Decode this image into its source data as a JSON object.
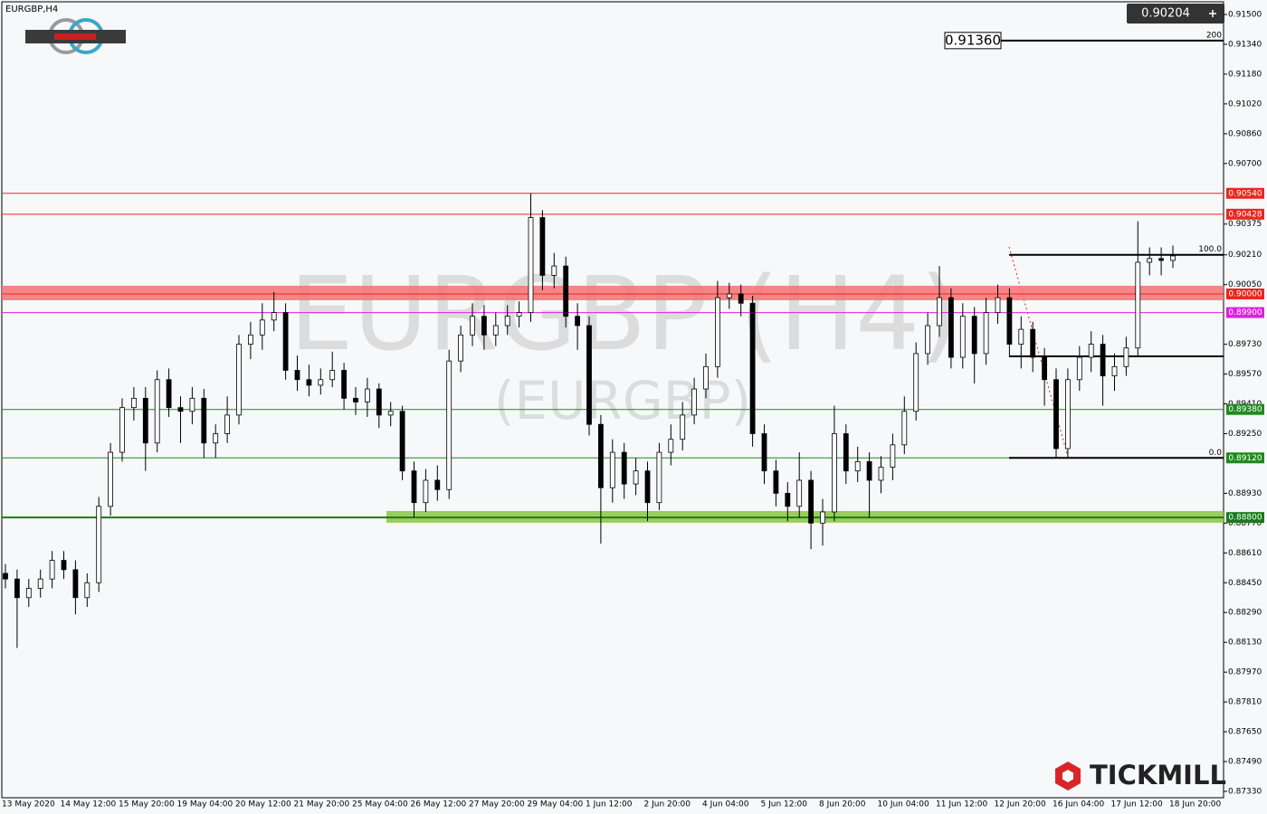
{
  "chart_data": {
    "type": "candlestick",
    "title": "EURGBP,H4",
    "watermark": "EURGBP (H4)",
    "watermark_sub": "(EURGBP)",
    "categories": [
      "13 May 2020",
      null,
      null,
      null,
      null,
      "14 May 12:00",
      null,
      null,
      null,
      null,
      "15 May 20:00",
      null,
      null,
      null,
      null,
      "19 May 04:00",
      null,
      null,
      null,
      null,
      "20 May 12:00",
      null,
      null,
      null,
      null,
      "21 May 20:00",
      null,
      null,
      null,
      null,
      "25 May 04:00",
      null,
      null,
      null,
      null,
      "26 May 12:00",
      null,
      null,
      null,
      null,
      "27 May 20:00",
      null,
      null,
      null,
      null,
      "29 May 04:00",
      null,
      null,
      null,
      null,
      "1 Jun 12:00",
      null,
      null,
      null,
      null,
      "2 Jun 20:00",
      null,
      null,
      null,
      null,
      "4 Jun 04:00",
      null,
      null,
      null,
      null,
      "5 Jun 12:00",
      null,
      null,
      null,
      null,
      "8 Jun 20:00",
      null,
      null,
      null,
      null,
      "10 Jun 04:00",
      null,
      null,
      null,
      null,
      "11 Jun 12:00",
      null,
      null,
      null,
      null,
      "12 Jun 20:00",
      null,
      null,
      null,
      null,
      "16 Jun 04:00",
      null,
      null,
      null,
      null,
      "17 Jun 12:00",
      null,
      null,
      null,
      null,
      "18 Jun 20:00"
    ],
    "open": [
      0.885,
      0.8847,
      0.8837,
      0.8842,
      0.8847,
      0.8857,
      0.8852,
      0.8837,
      0.8845,
      0.8886,
      0.8915,
      0.8939,
      0.8944,
      0.892,
      0.8954,
      0.8939,
      0.8937,
      0.8944,
      0.892,
      0.8925,
      0.8935,
      0.8973,
      0.8978,
      0.8986,
      0.899,
      0.8959,
      0.8954,
      0.8951,
      0.8954,
      0.8959,
      0.8944,
      0.8942,
      0.8949,
      0.8935,
      0.8937,
      0.8905,
      0.8888,
      0.89,
      0.8895,
      0.8964,
      0.8978,
      0.8988,
      0.8978,
      0.8983,
      0.8988,
      0.899,
      0.9041,
      0.901,
      0.9015,
      0.8988,
      0.8983,
      0.893,
      0.8896,
      0.8915,
      0.8898,
      0.8905,
      0.8888,
      0.8915,
      0.8922,
      0.8935,
      0.8949,
      0.8961,
      0.8998,
      0.9,
      0.8995,
      0.8925,
      0.8905,
      0.8893,
      0.8886,
      0.89,
      0.8877,
      0.8883,
      0.8925,
      0.8905,
      0.891,
      0.89,
      0.8907,
      0.8919,
      0.8937,
      0.8968,
      0.8983,
      0.8998,
      0.8966,
      0.8988,
      0.8968,
      0.899,
      0.8998,
      0.8973,
      0.8981,
      0.8966,
      0.8954,
      0.8917,
      0.8954,
      0.8966,
      0.8973,
      0.8956,
      0.8961,
      0.8971,
      0.9017,
      0.9019,
      0.9018
    ],
    "high": [
      0.8855,
      0.8852,
      0.8847,
      0.8852,
      0.8862,
      0.8862,
      0.8857,
      0.885,
      0.8891,
      0.892,
      0.8944,
      0.895,
      0.895,
      0.8959,
      0.896,
      0.8945,
      0.895,
      0.8949,
      0.893,
      0.8945,
      0.8978,
      0.8985,
      0.8995,
      0.9001,
      0.8995,
      0.8967,
      0.8962,
      0.896,
      0.8969,
      0.8963,
      0.895,
      0.8955,
      0.8952,
      0.8942,
      0.894,
      0.891,
      0.8906,
      0.8908,
      0.897,
      0.8983,
      0.8995,
      0.8994,
      0.899,
      0.8994,
      0.8996,
      0.9054,
      0.9045,
      0.9022,
      0.902,
      0.8995,
      0.8988,
      0.8935,
      0.8922,
      0.892,
      0.8912,
      0.891,
      0.892,
      0.893,
      0.8942,
      0.8955,
      0.8968,
      0.9007,
      0.9006,
      0.9005,
      0.8999,
      0.893,
      0.8911,
      0.8899,
      0.8915,
      0.8905,
      0.889,
      0.894,
      0.893,
      0.8918,
      0.8915,
      0.8913,
      0.8925,
      0.8945,
      0.8974,
      0.899,
      0.9015,
      0.9003,
      0.8995,
      0.8993,
      0.8998,
      0.9005,
      0.9003,
      0.8988,
      0.8985,
      0.8971,
      0.896,
      0.896,
      0.8972,
      0.898,
      0.8978,
      0.8968,
      0.8977,
      0.9039,
      0.9025,
      0.9025,
      0.9026
    ],
    "low": [
      0.8842,
      0.881,
      0.8832,
      0.8837,
      0.8842,
      0.8847,
      0.8828,
      0.8832,
      0.884,
      0.8881,
      0.891,
      0.8932,
      0.8905,
      0.8915,
      0.8934,
      0.892,
      0.893,
      0.8912,
      0.8912,
      0.892,
      0.893,
      0.8965,
      0.897,
      0.898,
      0.8954,
      0.8948,
      0.8945,
      0.8946,
      0.895,
      0.8938,
      0.8935,
      0.8934,
      0.8928,
      0.8929,
      0.89,
      0.888,
      0.8883,
      0.8889,
      0.889,
      0.8958,
      0.8972,
      0.897,
      0.8972,
      0.8978,
      0.8982,
      0.8985,
      0.9002,
      0.9003,
      0.8982,
      0.897,
      0.8924,
      0.8866,
      0.8888,
      0.889,
      0.8892,
      0.8878,
      0.8884,
      0.8908,
      0.8916,
      0.893,
      0.8944,
      0.8955,
      0.8992,
      0.8988,
      0.8918,
      0.8898,
      0.8886,
      0.8878,
      0.888,
      0.8863,
      0.8865,
      0.8878,
      0.8898,
      0.8899,
      0.888,
      0.8893,
      0.89,
      0.8914,
      0.8932,
      0.8962,
      0.8977,
      0.896,
      0.896,
      0.8952,
      0.8962,
      0.8984,
      0.8966,
      0.896,
      0.8958,
      0.894,
      0.8912,
      0.8912,
      0.8948,
      0.8958,
      0.894,
      0.8948,
      0.8956,
      0.8966,
      0.901,
      0.901,
      0.9014
    ],
    "close": [
      0.8847,
      0.8837,
      0.8842,
      0.8847,
      0.8857,
      0.8852,
      0.8837,
      0.8845,
      0.8886,
      0.8915,
      0.8939,
      0.8944,
      0.892,
      0.8954,
      0.8939,
      0.8937,
      0.8944,
      0.892,
      0.8925,
      0.8935,
      0.8973,
      0.8978,
      0.8986,
      0.899,
      0.8959,
      0.8954,
      0.8951,
      0.8954,
      0.8959,
      0.8944,
      0.8942,
      0.8949,
      0.8935,
      0.8937,
      0.8905,
      0.8888,
      0.89,
      0.8895,
      0.8964,
      0.8978,
      0.8988,
      0.8978,
      0.8983,
      0.8988,
      0.899,
      0.9041,
      0.901,
      0.9015,
      0.8988,
      0.8983,
      0.893,
      0.8896,
      0.8915,
      0.8898,
      0.8905,
      0.8888,
      0.8915,
      0.8922,
      0.8935,
      0.8949,
      0.8961,
      0.8998,
      0.9,
      0.8995,
      0.8925,
      0.8905,
      0.8893,
      0.8886,
      0.89,
      0.8877,
      0.8883,
      0.8925,
      0.8905,
      0.891,
      0.89,
      0.8907,
      0.8919,
      0.8937,
      0.8968,
      0.8983,
      0.8998,
      0.8966,
      0.8988,
      0.8968,
      0.899,
      0.8998,
      0.8973,
      0.8981,
      0.8966,
      0.8954,
      0.8917,
      0.8954,
      0.8966,
      0.8973,
      0.8956,
      0.8961,
      0.8971,
      0.9017,
      0.9019,
      0.9018,
      0.90204
    ],
    "bull_color": "#ffffff",
    "bear_color": "#000000",
    "ylim": [
      0.87296,
      0.91568
    ],
    "yticks": [
      {
        "value": 0.915,
        "label": "0.91500"
      },
      {
        "value": 0.9134,
        "label": "0.91340"
      },
      {
        "value": 0.9118,
        "label": "0.91180"
      },
      {
        "value": 0.9102,
        "label": "0.91020"
      },
      {
        "value": 0.9086,
        "label": "0.90860"
      },
      {
        "value": 0.907,
        "label": "0.90700"
      },
      {
        "value": 0.90375,
        "label": "0.90375"
      },
      {
        "value": 0.9021,
        "label": "0.90210"
      },
      {
        "value": 0.9005,
        "label": "0.90050"
      },
      {
        "value": 0.8973,
        "label": "0.89730"
      },
      {
        "value": 0.8957,
        "label": "0.89570"
      },
      {
        "value": 0.8941,
        "label": "0.89410"
      },
      {
        "value": 0.8925,
        "label": "0.89250"
      },
      {
        "value": 0.8893,
        "label": "0.88930"
      },
      {
        "value": 0.8877,
        "label": "0.88770"
      },
      {
        "value": 0.8861,
        "label": "0.88610"
      },
      {
        "value": 0.8845,
        "label": "0.88450"
      },
      {
        "value": 0.8829,
        "label": "0.88290"
      },
      {
        "value": 0.8813,
        "label": "0.88130"
      },
      {
        "value": 0.8797,
        "label": "0.87970"
      },
      {
        "value": 0.8781,
        "label": "0.87810"
      },
      {
        "value": 0.8765,
        "label": "0.87650"
      },
      {
        "value": 0.8749,
        "label": "0.87490"
      },
      {
        "value": 0.8733,
        "label": "0.87330"
      }
    ],
    "levels": [
      {
        "value": 0.9054,
        "label": "0.90540",
        "color": "#e8281e"
      },
      {
        "value": 0.90428,
        "label": "0.90428",
        "color": "#e8281e"
      },
      {
        "value": 0.9,
        "label": "0.90000",
        "color": "#e8281e",
        "band": [
          0.89966,
          0.90044
        ],
        "band_color": "#f47272"
      },
      {
        "value": 0.899,
        "label": "0.89900",
        "color": "#e020e0"
      },
      {
        "value": 0.8938,
        "label": "0.89380",
        "color": "#1f8a1f"
      },
      {
        "value": 0.8912,
        "label": "0.89120",
        "color": "#1f8a1f"
      },
      {
        "value": 0.888,
        "label": "0.88800",
        "color": "#1a7a1a",
        "band": [
          0.88772,
          0.88835
        ],
        "band_color": "#8cc63f"
      }
    ],
    "fib_levels": [
      {
        "value": 0.9136,
        "label": "200",
        "price_label": "0.91360"
      },
      {
        "value": 0.9021,
        "label": "100.0"
      },
      {
        "value": 0.89665
      },
      {
        "value": 0.8912,
        "label": "0.0"
      }
    ],
    "current_price": 0.90204
  },
  "logo": "TICKMILL"
}
